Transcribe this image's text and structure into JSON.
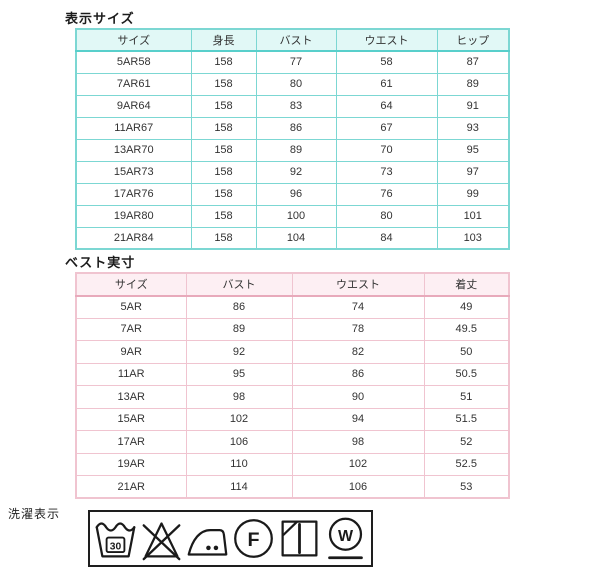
{
  "size_table": {
    "title": "表示サイズ",
    "headers": [
      "サイズ",
      "身長",
      "バスト",
      "ウエスト",
      "ヒップ"
    ],
    "rows": [
      [
        "5AR58",
        "158",
        "77",
        "58",
        "87"
      ],
      [
        "7AR61",
        "158",
        "80",
        "61",
        "89"
      ],
      [
        "9AR64",
        "158",
        "83",
        "64",
        "91"
      ],
      [
        "11AR67",
        "158",
        "86",
        "67",
        "93"
      ],
      [
        "13AR70",
        "158",
        "89",
        "70",
        "95"
      ],
      [
        "15AR73",
        "158",
        "92",
        "73",
        "97"
      ],
      [
        "17AR76",
        "158",
        "96",
        "76",
        "99"
      ],
      [
        "19AR80",
        "158",
        "100",
        "80",
        "101"
      ],
      [
        "21AR84",
        "158",
        "104",
        "84",
        "103"
      ]
    ],
    "border_color": "#7cd7d3",
    "border_color_dark": "#58cfcb",
    "header_bg": "#e1f8f6"
  },
  "vest_table": {
    "title": "ベスト実寸",
    "headers": [
      "サイズ",
      "バスト",
      "ウエスト",
      "着丈"
    ],
    "rows": [
      [
        "5AR",
        "86",
        "74",
        "49"
      ],
      [
        "7AR",
        "89",
        "78",
        "49.5"
      ],
      [
        "9AR",
        "92",
        "82",
        "50"
      ],
      [
        "11AR",
        "95",
        "86",
        "50.5"
      ],
      [
        "13AR",
        "98",
        "90",
        "51"
      ],
      [
        "15AR",
        "102",
        "94",
        "51.5"
      ],
      [
        "17AR",
        "106",
        "98",
        "52"
      ],
      [
        "19AR",
        "110",
        "102",
        "52.5"
      ],
      [
        "21AR",
        "114",
        "106",
        "53"
      ]
    ],
    "border_color": "#f0c4d0",
    "border_color_dark": "#e8aabb",
    "header_bg": "#fdeff3"
  },
  "care": {
    "label": "洗濯表示",
    "wash_temp": "30",
    "dry_clean_letter": "F",
    "wet_clean_letter": "W",
    "symbol_names": [
      "wash-30-icon",
      "do-not-bleach-icon",
      "iron-two-dots-icon",
      "dry-clean-f-icon",
      "shade-hang-dry-icon",
      "wet-clean-w-icon"
    ],
    "symbol_color": "#1a1a1a"
  }
}
